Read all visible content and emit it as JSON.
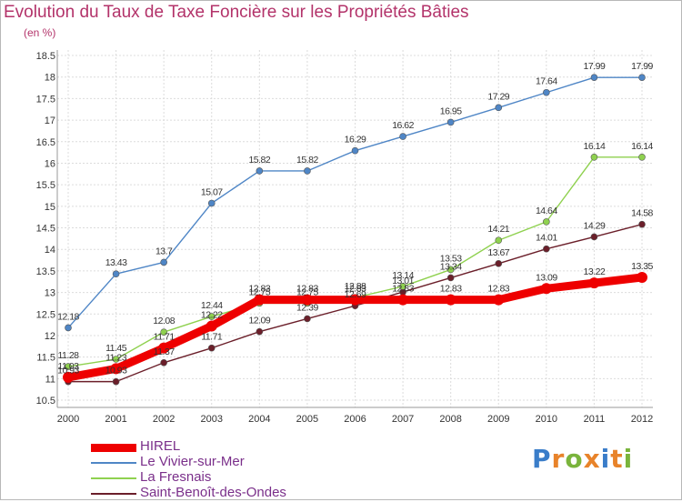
{
  "title": "Evolution du Taux de Taxe Foncière sur les Propriétés Bâties",
  "unit": "(en %)",
  "logo": {
    "text": "Proxiti",
    "letter_colors": [
      "#3a7dc9",
      "#e8832a",
      "#7ab43c",
      "#e8832a",
      "#3a7dc9",
      "#e8832a",
      "#7ab43c"
    ]
  },
  "chart_data": {
    "type": "line",
    "x": [
      "2000",
      "2001",
      "2002",
      "2003",
      "2004",
      "2005",
      "2006",
      "2007",
      "2008",
      "2009",
      "2010",
      "2011",
      "2012"
    ],
    "ylim": [
      10.5,
      18.5
    ],
    "yticks": [
      "10.5",
      "11",
      "11.5",
      "12",
      "12.5",
      "13",
      "13.5",
      "14",
      "14.5",
      "15",
      "15.5",
      "16",
      "16.5",
      "17",
      "17.5",
      "18",
      "18.5"
    ],
    "grid": true,
    "legend_position": "bottom-left",
    "series": [
      {
        "name": "HIREL",
        "color": "#ee0000",
        "values": [
          11.03,
          11.23,
          11.71,
          12.22,
          12.83,
          12.83,
          12.83,
          12.83,
          12.83,
          12.83,
          13.09,
          13.22,
          13.35
        ],
        "labels": [
          "11.03",
          "11.23",
          "11.71",
          "12.22",
          "12.83",
          "12.83",
          "12.83",
          "12.83",
          "12.83",
          "12.83",
          "13.09",
          "13.22",
          "13.35"
        ]
      },
      {
        "name": "Le Vivier-sur-Mer",
        "color": "#4f86c6",
        "values": [
          12.18,
          13.43,
          13.7,
          15.07,
          15.82,
          15.82,
          16.29,
          16.62,
          16.95,
          17.29,
          17.64,
          17.99,
          17.99
        ],
        "labels": [
          "12.18",
          "13.43",
          "13.7",
          "15.07",
          "15.82",
          "15.82",
          "16.29",
          "16.62",
          "16.95",
          "17.29",
          "17.64",
          "17.99",
          "17.99"
        ]
      },
      {
        "name": "La Fresnais",
        "color": "#8fd14f",
        "values": [
          11.28,
          11.45,
          12.08,
          12.44,
          12.75,
          12.75,
          12.88,
          13.14,
          13.53,
          14.21,
          14.64,
          16.14,
          16.14
        ],
        "labels": [
          "11.28",
          "11.45",
          "12.08",
          "12.44",
          "12.75",
          "12.75",
          "12.88",
          "13.14",
          "13.53",
          "14.21",
          "14.64",
          "16.14",
          "16.14"
        ]
      },
      {
        "name": "Saint-Benoît-des-Ondes",
        "color": "#6b1f2a",
        "values": [
          10.93,
          10.93,
          11.37,
          11.71,
          12.09,
          12.39,
          12.69,
          13.01,
          13.34,
          13.67,
          14.01,
          14.29,
          14.58
        ],
        "labels": [
          "10.93",
          "10.93",
          "11.37",
          "11.71",
          "12.09",
          "12.39",
          "12.69",
          "13.01",
          "13.34",
          "13.67",
          "14.01",
          "14.29",
          "14.58"
        ]
      }
    ]
  }
}
